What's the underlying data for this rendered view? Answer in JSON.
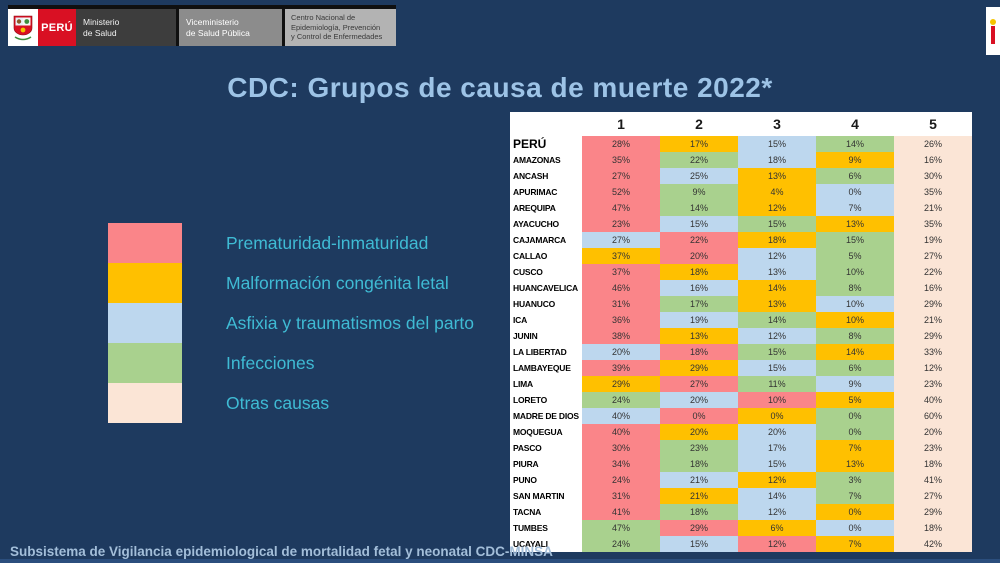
{
  "slide": {
    "title": "CDC: Grupos de causa de muerte 2022*",
    "footer": "Subsistema de Vigilancia epidemiological de mortalidad fetal y neonatal CDC-MINSA"
  },
  "header": {
    "peru": "PERÚ",
    "ministerio": "Ministerio\nde Salud",
    "viceministerio": "Viceministerio\nde Salud Pública",
    "centro": "Centro Nacional de\nEpidemiología, Prevención\ny Control de Enfermedades"
  },
  "chart_data": {
    "type": "table",
    "title": "CDC: Grupos de causa de muerte 2022*",
    "columns": [
      "1",
      "2",
      "3",
      "4",
      "5"
    ],
    "value_format": "percent",
    "legend": [
      {
        "key": "prematuridad",
        "label": "Prematuridad-inmaturidad",
        "color": "#FA8589"
      },
      {
        "key": "malformacion",
        "label": "Malformación congénita letal",
        "color": "#FFC000"
      },
      {
        "key": "asfixia",
        "label": "Asfixia y traumatismos del parto",
        "color": "#BDD7EE"
      },
      {
        "key": "infecciones",
        "label": "Infecciones",
        "color": "#A9D18E"
      },
      {
        "key": "otras",
        "label": "Otras causas",
        "color": "#FBE5D6"
      }
    ],
    "rows": [
      {
        "region": "PERÚ",
        "values": [
          28,
          17,
          15,
          14,
          26
        ],
        "causes": [
          "prematuridad",
          "malformacion",
          "asfixia",
          "infecciones",
          "otras"
        ]
      },
      {
        "region": "AMAZONAS",
        "values": [
          35,
          22,
          18,
          9,
          16
        ],
        "causes": [
          "prematuridad",
          "infecciones",
          "asfixia",
          "malformacion",
          "otras"
        ]
      },
      {
        "region": "ANCASH",
        "values": [
          27,
          25,
          13,
          6,
          30
        ],
        "causes": [
          "prematuridad",
          "asfixia",
          "malformacion",
          "infecciones",
          "otras"
        ]
      },
      {
        "region": "APURIMAC",
        "values": [
          52,
          9,
          4,
          0,
          35
        ],
        "causes": [
          "prematuridad",
          "infecciones",
          "malformacion",
          "asfixia",
          "otras"
        ]
      },
      {
        "region": "AREQUIPA",
        "values": [
          47,
          14,
          12,
          7,
          21
        ],
        "causes": [
          "prematuridad",
          "infecciones",
          "malformacion",
          "asfixia",
          "otras"
        ]
      },
      {
        "region": "AYACUCHO",
        "values": [
          23,
          15,
          15,
          13,
          35
        ],
        "causes": [
          "prematuridad",
          "asfixia",
          "infecciones",
          "malformacion",
          "otras"
        ]
      },
      {
        "region": "CAJAMARCA",
        "values": [
          27,
          22,
          18,
          15,
          19
        ],
        "causes": [
          "asfixia",
          "prematuridad",
          "malformacion",
          "infecciones",
          "otras"
        ]
      },
      {
        "region": "CALLAO",
        "values": [
          37,
          20,
          12,
          5,
          27
        ],
        "causes": [
          "malformacion",
          "prematuridad",
          "asfixia",
          "infecciones",
          "otras"
        ]
      },
      {
        "region": "CUSCO",
        "values": [
          37,
          18,
          13,
          10,
          22
        ],
        "causes": [
          "prematuridad",
          "malformacion",
          "asfixia",
          "infecciones",
          "otras"
        ]
      },
      {
        "region": "HUANCAVELICA",
        "values": [
          46,
          16,
          14,
          8,
          16
        ],
        "causes": [
          "prematuridad",
          "asfixia",
          "malformacion",
          "infecciones",
          "otras"
        ]
      },
      {
        "region": "HUANUCO",
        "values": [
          31,
          17,
          13,
          10,
          29
        ],
        "causes": [
          "prematuridad",
          "infecciones",
          "malformacion",
          "asfixia",
          "otras"
        ]
      },
      {
        "region": "ICA",
        "values": [
          36,
          19,
          14,
          10,
          21
        ],
        "causes": [
          "prematuridad",
          "asfixia",
          "infecciones",
          "malformacion",
          "otras"
        ]
      },
      {
        "region": "JUNIN",
        "values": [
          38,
          13,
          12,
          8,
          29
        ],
        "causes": [
          "prematuridad",
          "malformacion",
          "asfixia",
          "infecciones",
          "otras"
        ]
      },
      {
        "region": "LA LIBERTAD",
        "values": [
          20,
          18,
          15,
          14,
          33
        ],
        "causes": [
          "asfixia",
          "prematuridad",
          "infecciones",
          "malformacion",
          "otras"
        ]
      },
      {
        "region": "LAMBAYEQUE",
        "values": [
          39,
          29,
          15,
          6,
          12
        ],
        "causes": [
          "prematuridad",
          "malformacion",
          "asfixia",
          "infecciones",
          "otras"
        ]
      },
      {
        "region": "LIMA",
        "values": [
          29,
          27,
          11,
          9,
          23
        ],
        "causes": [
          "malformacion",
          "prematuridad",
          "infecciones",
          "asfixia",
          "otras"
        ]
      },
      {
        "region": "LORETO",
        "values": [
          24,
          20,
          10,
          5,
          40
        ],
        "causes": [
          "infecciones",
          "asfixia",
          "prematuridad",
          "malformacion",
          "otras"
        ]
      },
      {
        "region": "MADRE DE DIOS",
        "values": [
          40,
          0,
          0,
          0,
          60
        ],
        "causes": [
          "asfixia",
          "prematuridad",
          "malformacion",
          "infecciones",
          "otras"
        ]
      },
      {
        "region": "MOQUEGUA",
        "values": [
          40,
          20,
          20,
          0,
          20
        ],
        "causes": [
          "prematuridad",
          "malformacion",
          "asfixia",
          "infecciones",
          "otras"
        ]
      },
      {
        "region": "PASCO",
        "values": [
          30,
          23,
          17,
          7,
          23
        ],
        "causes": [
          "prematuridad",
          "infecciones",
          "asfixia",
          "malformacion",
          "otras"
        ]
      },
      {
        "region": "PIURA",
        "values": [
          34,
          18,
          15,
          13,
          18
        ],
        "causes": [
          "prematuridad",
          "infecciones",
          "asfixia",
          "malformacion",
          "otras"
        ]
      },
      {
        "region": "PUNO",
        "values": [
          24,
          21,
          12,
          3,
          41
        ],
        "causes": [
          "prematuridad",
          "asfixia",
          "malformacion",
          "infecciones",
          "otras"
        ]
      },
      {
        "region": "SAN MARTIN",
        "values": [
          31,
          21,
          14,
          7,
          27
        ],
        "causes": [
          "prematuridad",
          "malformacion",
          "asfixia",
          "infecciones",
          "otras"
        ]
      },
      {
        "region": "TACNA",
        "values": [
          41,
          18,
          12,
          0,
          29
        ],
        "causes": [
          "prematuridad",
          "infecciones",
          "asfixia",
          "malformacion",
          "otras"
        ]
      },
      {
        "region": "TUMBES",
        "values": [
          47,
          29,
          6,
          0,
          18
        ],
        "causes": [
          "infecciones",
          "prematuridad",
          "malformacion",
          "asfixia",
          "otras"
        ]
      },
      {
        "region": "UCAYALI",
        "values": [
          24,
          15,
          12,
          7,
          42
        ],
        "causes": [
          "infecciones",
          "asfixia",
          "prematuridad",
          "malformacion",
          "otras"
        ]
      }
    ]
  },
  "colors": {
    "background": "#1E3A5F",
    "title_text": "#9DC3E6",
    "legend_text": "#3FBBD4",
    "footer_text": "#A3BED9",
    "peru_red": "#D91023"
  }
}
